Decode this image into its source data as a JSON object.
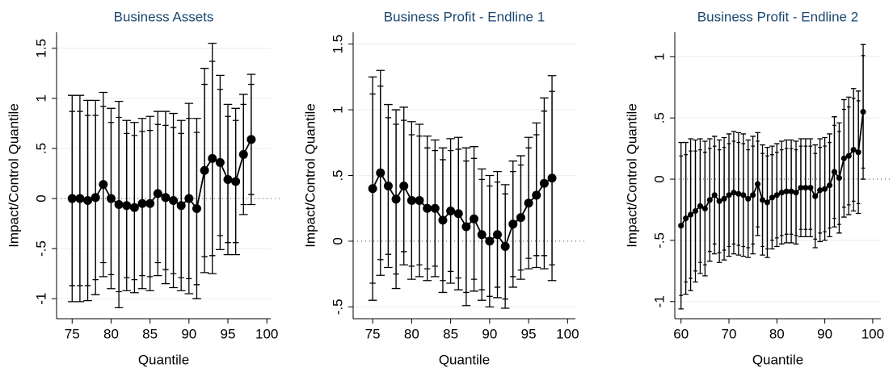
{
  "chart_data": [
    {
      "type": "errorbar",
      "title": "Business Assets",
      "x_label": "Quantile",
      "y_label": "Impact/Control Quantile",
      "x": [
        75,
        76,
        77,
        78,
        79,
        80,
        81,
        82,
        83,
        84,
        85,
        86,
        87,
        88,
        89,
        90,
        91,
        92,
        93,
        94,
        95,
        96,
        97,
        98
      ],
      "values": [
        0,
        0,
        -0.02,
        0.01,
        0.14,
        0,
        -0.06,
        -0.07,
        -0.09,
        -0.05,
        -0.05,
        0.05,
        0.01,
        -0.02,
        -0.07,
        0,
        -0.1,
        0.28,
        0.4,
        0.36,
        0.19,
        0.17,
        0.44,
        0.59
      ],
      "error_inner": [
        0.87,
        0.87,
        0.85,
        0.82,
        0.78,
        0.76,
        0.87,
        0.72,
        0.72,
        0.72,
        0.73,
        0.69,
        0.72,
        0.73,
        0.72,
        0.8,
        0.76,
        0.86,
        0.97,
        0.73,
        0.63,
        0.61,
        0.5,
        0.55
      ],
      "error_outer": [
        1.03,
        1.03,
        1.0,
        0.97,
        0.92,
        0.9,
        1.03,
        0.85,
        0.85,
        0.85,
        0.87,
        0.82,
        0.86,
        0.87,
        0.85,
        0.95,
        0.9,
        1.02,
        1.15,
        0.87,
        0.75,
        0.73,
        0.6,
        0.65
      ],
      "color": "#000000",
      "reference_line": 0,
      "xlim": [
        73,
        100.5
      ],
      "xticks": [
        75,
        80,
        85,
        90,
        95,
        100
      ],
      "ylim": [
        -1.2,
        1.66
      ],
      "yticks": [
        {
          "value": -1,
          "label": "-1"
        },
        {
          "value": -0.5,
          "label": "-.5"
        },
        0,
        {
          "value": 0.5,
          "label": ".5"
        },
        1,
        1.5
      ],
      "grid": true
    },
    {
      "type": "errorbar",
      "title": "Business Profit - Endline 1",
      "x_label": "Quantile",
      "y_label": "Impact/Control Quantile",
      "x": [
        75,
        76,
        77,
        78,
        79,
        80,
        81,
        82,
        83,
        84,
        85,
        86,
        87,
        88,
        89,
        90,
        91,
        92,
        93,
        94,
        95,
        96,
        97,
        98
      ],
      "values": [
        0.4,
        0.52,
        0.42,
        0.32,
        0.42,
        0.31,
        0.31,
        0.25,
        0.25,
        0.16,
        0.23,
        0.21,
        0.11,
        0.17,
        0.05,
        0,
        0.05,
        -0.04,
        0.13,
        0.18,
        0.29,
        0.35,
        0.44,
        0.48
      ],
      "error_inner": [
        0.72,
        0.66,
        0.52,
        0.57,
        0.5,
        0.5,
        0.49,
        0.46,
        0.44,
        0.46,
        0.46,
        0.49,
        0.5,
        0.46,
        0.42,
        0.42,
        0.4,
        0.4,
        0.4,
        0.4,
        0.42,
        0.46,
        0.55,
        0.66
      ],
      "error_outer": [
        0.85,
        0.78,
        0.62,
        0.68,
        0.6,
        0.6,
        0.58,
        0.55,
        0.52,
        0.55,
        0.55,
        0.58,
        0.6,
        0.55,
        0.5,
        0.5,
        0.48,
        0.47,
        0.48,
        0.47,
        0.5,
        0.55,
        0.65,
        0.78
      ],
      "color": "#000000",
      "reference_line": 0,
      "xlim": [
        72.5,
        101
      ],
      "xticks": [
        75,
        80,
        85,
        90,
        95,
        100
      ],
      "ylim": [
        -0.59,
        1.59
      ],
      "yticks": [
        {
          "value": -0.5,
          "label": "-.5"
        },
        0,
        {
          "value": 0.5,
          "label": ".5"
        },
        1,
        1.5
      ],
      "grid": true
    },
    {
      "type": "errorbar",
      "title": "Business Profit - Endline 2",
      "x_label": "Quantile",
      "y_label": "Impact/Control Quantile",
      "x": [
        60,
        61,
        62,
        63,
        64,
        65,
        66,
        67,
        68,
        69,
        70,
        71,
        72,
        73,
        74,
        75,
        76,
        77,
        78,
        79,
        80,
        81,
        82,
        83,
        84,
        85,
        86,
        87,
        88,
        89,
        90,
        91,
        92,
        93,
        94,
        95,
        96,
        97,
        98
      ],
      "values": [
        -0.38,
        -0.32,
        -0.29,
        -0.26,
        -0.22,
        -0.24,
        -0.17,
        -0.13,
        -0.18,
        -0.16,
        -0.13,
        -0.11,
        -0.12,
        -0.13,
        -0.16,
        -0.13,
        -0.04,
        -0.17,
        -0.19,
        -0.15,
        -0.13,
        -0.11,
        -0.1,
        -0.1,
        -0.11,
        -0.07,
        -0.07,
        -0.07,
        -0.14,
        -0.09,
        -0.08,
        -0.05,
        0.06,
        0.01,
        0.17,
        0.19,
        0.24,
        0.22,
        0.55
      ],
      "error_inner": [
        0.57,
        0.52,
        0.52,
        0.49,
        0.46,
        0.46,
        0.42,
        0.4,
        0.42,
        0.42,
        0.42,
        0.42,
        0.42,
        0.42,
        0.4,
        0.4,
        0.35,
        0.38,
        0.38,
        0.35,
        0.35,
        0.35,
        0.35,
        0.35,
        0.35,
        0.34,
        0.34,
        0.34,
        0.35,
        0.35,
        0.35,
        0.35,
        0.38,
        0.38,
        0.4,
        0.4,
        0.42,
        0.42,
        0.46
      ],
      "error_outer": [
        0.68,
        0.62,
        0.62,
        0.58,
        0.55,
        0.55,
        0.5,
        0.48,
        0.5,
        0.5,
        0.5,
        0.5,
        0.5,
        0.5,
        0.48,
        0.48,
        0.42,
        0.45,
        0.45,
        0.42,
        0.42,
        0.42,
        0.42,
        0.42,
        0.42,
        0.4,
        0.4,
        0.4,
        0.42,
        0.42,
        0.42,
        0.42,
        0.45,
        0.45,
        0.48,
        0.48,
        0.5,
        0.5,
        0.55
      ],
      "color": "#000000",
      "reference_line": 0,
      "xlim": [
        58.7,
        101.7
      ],
      "xticks": [
        60,
        70,
        80,
        90,
        100
      ],
      "ylim": [
        -1.14,
        1.2
      ],
      "yticks": [
        {
          "value": -1,
          "label": "-1"
        },
        {
          "value": -0.5,
          "label": "-.5"
        },
        0,
        {
          "value": 0.5,
          "label": ".5"
        },
        1
      ],
      "grid": true
    }
  ]
}
